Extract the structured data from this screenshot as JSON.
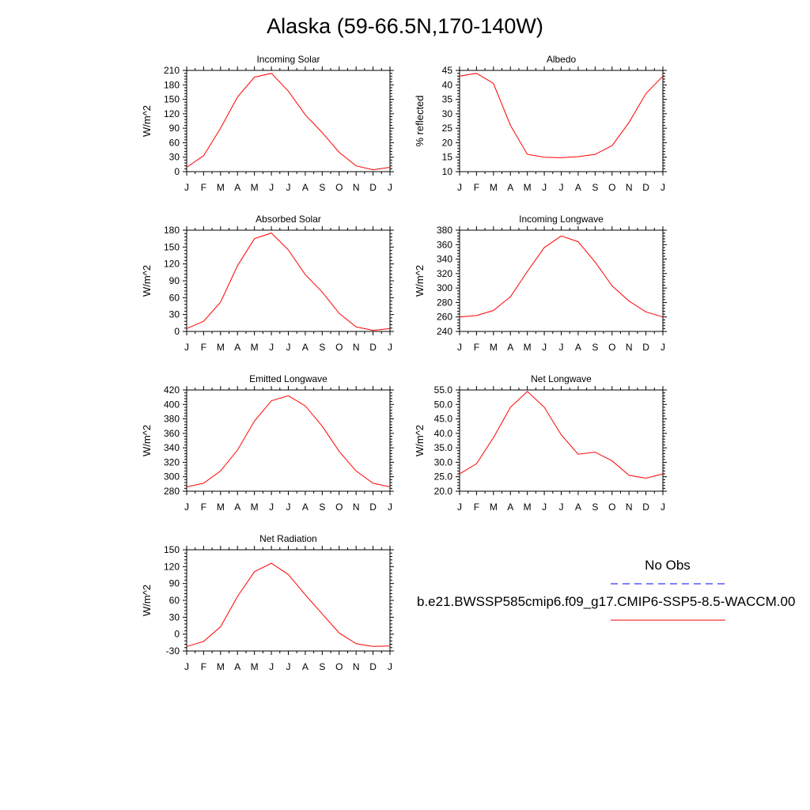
{
  "title": "Alaska (59-66.5N,170-140W)",
  "legend": {
    "items": [
      {
        "label": "No Obs",
        "color": "#0000ff",
        "dash": "dashed"
      },
      {
        "label": "b.e21.BWSSP585cmip6.f09_g17.CMIP6-SSP5-8.5-WACCM.00",
        "color": "#ff0000",
        "dash": "solid"
      }
    ]
  },
  "chart_data": [
    {
      "type": "line",
      "title": "Incoming Solar",
      "ylabel": "W/m^2",
      "categories": [
        "J",
        "F",
        "M",
        "A",
        "M",
        "J",
        "J",
        "A",
        "S",
        "O",
        "N",
        "D",
        "J"
      ],
      "ylim": [
        0,
        210
      ],
      "yticks": [
        0,
        30,
        60,
        90,
        120,
        150,
        180,
        210
      ],
      "ytick_labels": [
        "0",
        "30",
        "60",
        "90",
        "120",
        "150",
        "180",
        "210"
      ],
      "series": [
        {
          "color": "#ff0000",
          "values": [
            9,
            33,
            90,
            155,
            196,
            204,
            167,
            118,
            81,
            40,
            12,
            4,
            9
          ]
        }
      ]
    },
    {
      "type": "line",
      "title": "Albedo",
      "ylabel": "% reflected",
      "categories": [
        "J",
        "F",
        "M",
        "A",
        "M",
        "J",
        "J",
        "A",
        "S",
        "O",
        "N",
        "D",
        "J"
      ],
      "ylim": [
        10,
        45
      ],
      "yticks": [
        10,
        15,
        20,
        25,
        30,
        35,
        40,
        45
      ],
      "ytick_labels": [
        "10",
        "15",
        "20",
        "25",
        "30",
        "35",
        "40",
        "45"
      ],
      "series": [
        {
          "color": "#ff0000",
          "values": [
            43,
            44,
            40.5,
            26,
            16,
            15,
            14.8,
            15.2,
            16,
            19,
            27,
            37,
            43
          ]
        }
      ]
    },
    {
      "type": "line",
      "title": "Absorbed Solar",
      "ylabel": "W/m^2",
      "categories": [
        "J",
        "F",
        "M",
        "A",
        "M",
        "J",
        "J",
        "A",
        "S",
        "O",
        "N",
        "D",
        "J"
      ],
      "ylim": [
        0,
        180
      ],
      "yticks": [
        0,
        30,
        60,
        90,
        120,
        150,
        180
      ],
      "ytick_labels": [
        "0",
        "30",
        "60",
        "90",
        "120",
        "150",
        "180"
      ],
      "series": [
        {
          "color": "#ff0000",
          "values": [
            5,
            18,
            52,
            117,
            165,
            175,
            145,
            101,
            70,
            32,
            8,
            2,
            5
          ]
        }
      ]
    },
    {
      "type": "line",
      "title": "Incoming Longwave",
      "ylabel": "W/m^2",
      "categories": [
        "J",
        "F",
        "M",
        "A",
        "M",
        "J",
        "J",
        "A",
        "S",
        "O",
        "N",
        "D",
        "J"
      ],
      "ylim": [
        240,
        380
      ],
      "yticks": [
        240,
        260,
        280,
        300,
        320,
        340,
        360,
        380
      ],
      "ytick_labels": [
        "240",
        "260",
        "280",
        "300",
        "320",
        "340",
        "360",
        "380"
      ],
      "series": [
        {
          "color": "#ff0000",
          "values": [
            260,
            262,
            269,
            288,
            323,
            356,
            372,
            364,
            336,
            303,
            282,
            267,
            260
          ]
        }
      ]
    },
    {
      "type": "line",
      "title": "Emitted Longwave",
      "ylabel": "W/m^2",
      "categories": [
        "J",
        "F",
        "M",
        "A",
        "M",
        "J",
        "J",
        "A",
        "S",
        "O",
        "N",
        "D",
        "J"
      ],
      "ylim": [
        280,
        420
      ],
      "yticks": [
        280,
        300,
        320,
        340,
        360,
        380,
        400,
        420
      ],
      "ytick_labels": [
        "280",
        "300",
        "320",
        "340",
        "360",
        "380",
        "400",
        "420"
      ],
      "series": [
        {
          "color": "#ff0000",
          "values": [
            286,
            291,
            308,
            337,
            377,
            405,
            412,
            398,
            370,
            335,
            308,
            291,
            286
          ]
        }
      ]
    },
    {
      "type": "line",
      "title": "Net Longwave",
      "ylabel": "W/m^2",
      "categories": [
        "J",
        "F",
        "M",
        "A",
        "M",
        "J",
        "J",
        "A",
        "S",
        "O",
        "N",
        "D",
        "J"
      ],
      "ylim": [
        20,
        55
      ],
      "yticks": [
        20,
        25,
        30,
        35,
        40,
        45,
        50,
        55
      ],
      "ytick_labels": [
        "20.0",
        "25.0",
        "30.0",
        "35.0",
        "40.0",
        "45.0",
        "50.0",
        "55.0"
      ],
      "series": [
        {
          "color": "#ff0000",
          "values": [
            26,
            29.5,
            38.5,
            49,
            54.5,
            49,
            39.5,
            32.8,
            33.5,
            30.5,
            25.5,
            24.5,
            26
          ]
        }
      ]
    },
    {
      "type": "line",
      "title": "Net Radiation",
      "ylabel": "W/m^2",
      "categories": [
        "J",
        "F",
        "M",
        "A",
        "M",
        "J",
        "J",
        "A",
        "S",
        "O",
        "N",
        "D",
        "J"
      ],
      "ylim": [
        -30,
        150
      ],
      "yticks": [
        -30,
        0,
        30,
        60,
        90,
        120,
        150
      ],
      "ytick_labels": [
        "-30",
        "0",
        "30",
        "60",
        "90",
        "120",
        "150"
      ],
      "series": [
        {
          "color": "#ff0000",
          "values": [
            -22,
            -13,
            13,
            67,
            111,
            126,
            106,
            70,
            36,
            2,
            -17,
            -22,
            -21
          ]
        }
      ]
    }
  ]
}
